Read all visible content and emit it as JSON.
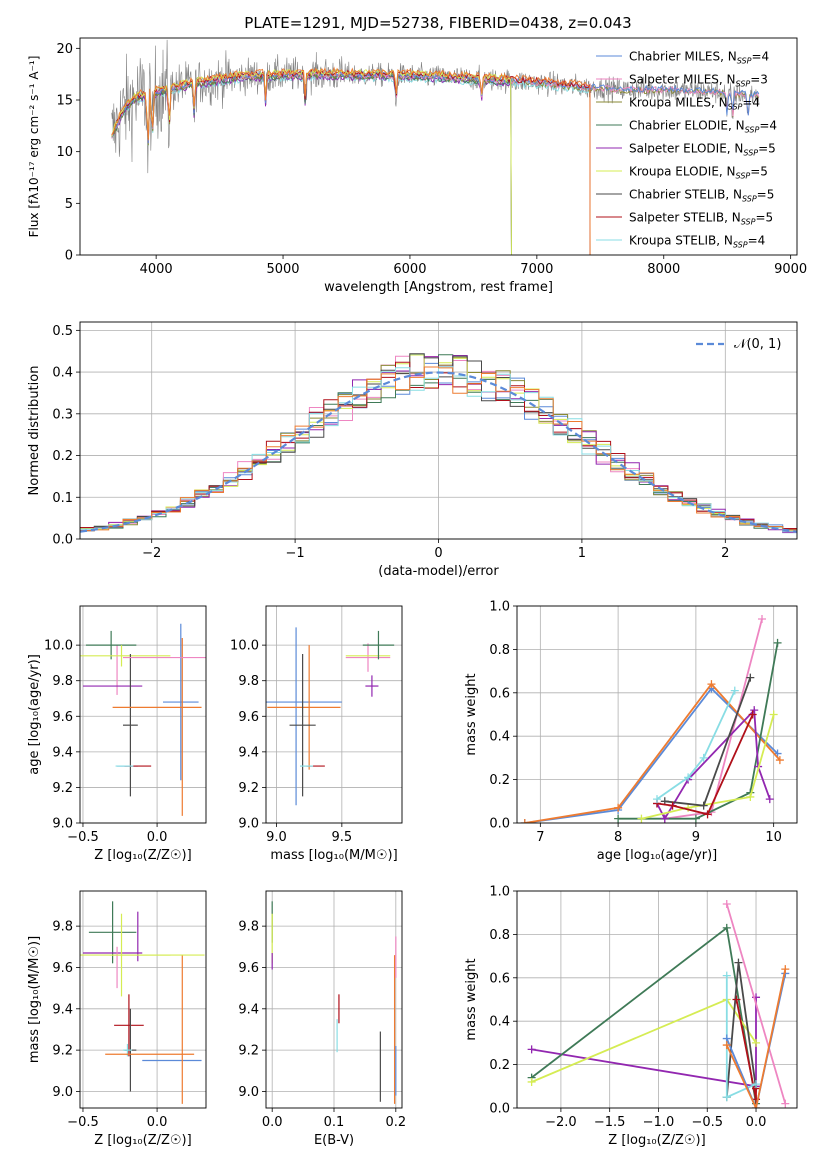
{
  "figure_title": "PLATE=1291, MJD=52738, FIBERID=0438, z=0.043",
  "colors": {
    "Chabrier MILES": "#5b8ad8",
    "Salpeter MILES": "#ee86c2",
    "Kroupa MILES": "#8a8a35",
    "Chabrier ELODIE": "#3f7a57",
    "Salpeter ELODIE": "#9227b0",
    "Kroupa ELODIE": "#d5ec53",
    "Chabrier STELIB": "#4a4a4a",
    "Salpeter STELIB": "#b0101a",
    "Kroupa STELIB": "#88dde4",
    "data_grey": "#808080",
    "orange": "#ee7b30"
  },
  "chart_data": [
    {
      "id": "spectrum",
      "type": "line",
      "title": "PLATE=1291, MJD=52738, FIBERID=0438, z=0.043",
      "xlabel": "wavelength [Angstrom, rest frame]",
      "ylabel": "Flux [fλ10⁻¹⁷ erg cm⁻² s⁻¹ A⁻¹]",
      "xlim": [
        3400,
        9050
      ],
      "ylim": [
        0,
        21
      ],
      "xticks": [
        4000,
        5000,
        6000,
        7000,
        8000,
        9000
      ],
      "yticks": [
        0,
        5,
        10,
        15,
        20
      ],
      "legend_position": "top-right",
      "legend": [
        "Chabrier MILES, N_SSP=4",
        "Salpeter MILES, N_SSP=3",
        "Kroupa MILES, N_SSP=4",
        "Chabrier ELODIE, N_SSP=4",
        "Salpeter ELODIE, N_SSP=5",
        "Kroupa ELODIE, N_SSP=5",
        "Chabrier STELIB, N_SSP=5",
        "Salpeter STELIB, N_SSP=5",
        "Kroupa STELIB, N_SSP=4"
      ],
      "continuum": {
        "x": [
          3650,
          3750,
          3850,
          3950,
          4100,
          4300,
          4500,
          4700,
          5000,
          5300,
          5600,
          5900,
          6300,
          6600,
          7000,
          7400,
          7700,
          8000,
          8400,
          8700
        ],
        "y": [
          11.5,
          14.2,
          15.3,
          15.6,
          16.1,
          16.6,
          17.0,
          17.3,
          17.4,
          17.5,
          17.4,
          17.4,
          17.2,
          17.0,
          16.7,
          16.2,
          16.0,
          16.0,
          15.8,
          15.5
        ]
      },
      "model_cutoffs": {
        "ELODIE": 6800,
        "STELIB": 7420
      }
    },
    {
      "id": "residual_hist",
      "type": "bar",
      "xlabel": "(data-model)/error",
      "ylabel": "Normed distribution",
      "xlim": [
        -2.5,
        2.5
      ],
      "ylim": [
        0,
        0.52
      ],
      "xticks": [
        -2,
        -1,
        0,
        1,
        2
      ],
      "yticks": [
        0.0,
        0.1,
        0.2,
        0.3,
        0.4,
        0.5
      ],
      "legend": [
        "𝒩(0, 1)"
      ],
      "legend_position": "top-right",
      "bin_width": 0.1,
      "reference_curve": "standard normal N(0,1)"
    },
    {
      "id": "age_vs_Z",
      "type": "scatter",
      "xlabel": "Z [log₁₀(Z/Z☉)]",
      "ylabel": "age  [log₁₀(age/yr)]",
      "xlim": [
        -0.52,
        0.33
      ],
      "ylim": [
        9.0,
        10.22
      ],
      "xticks": [
        -0.5,
        0.0
      ],
      "yticks": [
        9.0,
        9.2,
        9.4,
        9.6,
        9.8,
        10.0
      ],
      "errorbars": [
        {
          "model": "Chabrier MILES",
          "x": 0.16,
          "xerr": 0.12,
          "y": 9.68,
          "yerr": 0.44
        },
        {
          "model": "Salpeter MILES",
          "x": -0.27,
          "xerr": 0.0,
          "y": 9.86,
          "yerr": 0.14
        },
        {
          "model": "Chabrier MILES",
          "x": -0.2,
          "xerr": 0.07,
          "y": 9.32,
          "yerr": 0.0
        },
        {
          "model": "Chabrier ELODIE",
          "x": -0.31,
          "xerr": 0.17,
          "y": 10.0,
          "yerr": 0.08
        },
        {
          "model": "Salpeter ELODIE",
          "x": -0.3,
          "xerr": 0.2,
          "y": 9.77,
          "yerr": 0.0
        },
        {
          "model": "Kroupa ELODIE",
          "x": -0.24,
          "xerr": 0.33,
          "y": 9.94,
          "yerr": 0.06
        },
        {
          "model": "Chabrier STELIB",
          "x": -0.18,
          "xerr": 0.05,
          "y": 9.55,
          "yerr": 0.4
        },
        {
          "model": "Salpeter STELIB",
          "x": -0.13,
          "xerr": 0.09,
          "y": 9.32,
          "yerr": 0.0
        },
        {
          "model": "Kroupa STELIB",
          "x": -0.22,
          "xerr": 0.06,
          "y": 9.32,
          "yerr": 0.0
        },
        {
          "model": "orange",
          "x": 0.0,
          "xerr": 0.3,
          "y": 9.65,
          "yerr": 0.0
        },
        {
          "model": "orange",
          "x": 0.17,
          "xerr": 0.0,
          "y": 9.54,
          "yerr": 0.5
        },
        {
          "model": "Salpeter MILES",
          "x": 0.07,
          "xerr": 0.3,
          "y": 9.93,
          "yerr": 0.0
        }
      ]
    },
    {
      "id": "age_vs_mass",
      "type": "scatter",
      "xlabel": "mass [log₁₀(M/M☉)]",
      "ylabel": "",
      "xlim": [
        8.92,
        9.96
      ],
      "ylim": [
        9.0,
        10.22
      ],
      "xticks": [
        9.0,
        9.5
      ],
      "yticks": [
        9.0,
        9.2,
        9.4,
        9.6,
        9.8,
        10.0
      ],
      "errorbars": [
        {
          "model": "Chabrier MILES",
          "x": 9.15,
          "xerr": 0.0,
          "y": 9.6,
          "yerr": 0.5
        },
        {
          "model": "Chabrier MILES",
          "x": 9.2,
          "xerr": 0.3,
          "y": 9.68,
          "yerr": 0.0
        },
        {
          "model": "orange",
          "x": 9.21,
          "xerr": 0.28,
          "y": 9.65,
          "yerr": 0.0
        },
        {
          "model": "orange",
          "x": 9.25,
          "xerr": 0.0,
          "y": 9.65,
          "yerr": 0.35
        },
        {
          "model": "Chabrier STELIB",
          "x": 9.2,
          "xerr": 0.1,
          "y": 9.55,
          "yerr": 0.4
        },
        {
          "model": "Salpeter STELIB",
          "x": 9.3,
          "xerr": 0.07,
          "y": 9.32,
          "yerr": 0.0
        },
        {
          "model": "Kroupa STELIB",
          "x": 9.23,
          "xerr": 0.05,
          "y": 9.32,
          "yerr": 0.0
        },
        {
          "model": "Salpeter MILES",
          "x": 9.7,
          "xerr": 0.17,
          "y": 9.93,
          "yerr": 0.08
        },
        {
          "model": "Kroupa ELODIE",
          "x": 9.7,
          "xerr": 0.17,
          "y": 9.94,
          "yerr": 0.0
        },
        {
          "model": "Chabrier ELODIE",
          "x": 9.78,
          "xerr": 0.12,
          "y": 10.0,
          "yerr": 0.08
        },
        {
          "model": "Salpeter ELODIE",
          "x": 9.73,
          "xerr": 0.05,
          "y": 9.77,
          "yerr": 0.06
        }
      ]
    },
    {
      "id": "massweight_vs_age",
      "type": "line",
      "xlabel": "age  [log₁₀(age/yr)]",
      "ylabel": "mass weight",
      "xlim": [
        6.7,
        10.3
      ],
      "ylim": [
        0,
        1.0
      ],
      "xticks": [
        7,
        8,
        9,
        10
      ],
      "yticks": [
        0.0,
        0.2,
        0.4,
        0.6,
        0.8,
        1.0
      ],
      "series": [
        {
          "model": "Chabrier MILES",
          "x": [
            6.8,
            8.0,
            9.2,
            10.05
          ],
          "y": [
            0.0,
            0.06,
            0.62,
            0.32
          ]
        },
        {
          "model": "orange",
          "x": [
            6.8,
            8.0,
            9.2,
            10.08
          ],
          "y": [
            0.0,
            0.07,
            0.64,
            0.29
          ]
        },
        {
          "model": "Salpeter MILES",
          "x": [
            8.6,
            9.2,
            9.85
          ],
          "y": [
            0.02,
            0.05,
            0.94
          ]
        },
        {
          "model": "Chabrier ELODIE",
          "x": [
            8.0,
            9.0,
            9.7,
            10.05
          ],
          "y": [
            0.02,
            0.02,
            0.14,
            0.83
          ]
        },
        {
          "model": "Salpeter ELODIE",
          "x": [
            8.5,
            8.6,
            8.9,
            9.75,
            9.8,
            9.95
          ],
          "y": [
            0.09,
            0.02,
            0.2,
            0.52,
            0.26,
            0.11
          ]
        },
        {
          "model": "Kroupa ELODIE",
          "x": [
            8.3,
            8.9,
            9.7,
            10.0
          ],
          "y": [
            0.02,
            0.07,
            0.12,
            0.5
          ]
        },
        {
          "model": "Chabrier STELIB",
          "x": [
            8.6,
            9.1,
            9.7
          ],
          "y": [
            0.1,
            0.08,
            0.67
          ]
        },
        {
          "model": "Salpeter STELIB",
          "x": [
            8.5,
            8.7,
            9.15,
            9.73
          ],
          "y": [
            0.09,
            0.08,
            0.04,
            0.5
          ]
        },
        {
          "model": "Kroupa STELIB",
          "x": [
            8.5,
            8.9,
            9.1,
            9.5
          ],
          "y": [
            0.11,
            0.21,
            0.3,
            0.61
          ]
        }
      ]
    },
    {
      "id": "mass_vs_Z",
      "type": "scatter",
      "xlabel": "Z [log₁₀(Z/Z☉)]",
      "ylabel": "mass [log₁₀(M/M☉)]",
      "xlim": [
        -0.52,
        0.33
      ],
      "ylim": [
        8.92,
        9.97
      ],
      "xticks": [
        -0.5,
        0.0
      ],
      "yticks": [
        9.0,
        9.2,
        9.4,
        9.6,
        9.8
      ],
      "errorbars": [
        {
          "model": "Chabrier ELODIE",
          "x": -0.3,
          "xerr": 0.16,
          "y": 9.77,
          "yerr": 0.15
        },
        {
          "model": "Salpeter ELODIE",
          "x": -0.3,
          "xerr": 0.2,
          "y": 9.67,
          "yerr": 0.0
        },
        {
          "model": "Kroupa ELODIE",
          "x": -0.24,
          "xerr": 0.33,
          "y": 9.66,
          "yerr": 0.2
        },
        {
          "model": "Salpeter MILES",
          "x": -0.27,
          "xerr": 0.0,
          "y": 9.6,
          "yerr": 0.1
        },
        {
          "model": "Salpeter ELODIE",
          "x": -0.13,
          "xerr": 0.0,
          "y": 9.75,
          "yerr": 0.12
        },
        {
          "model": "Salpeter STELIB",
          "x": -0.19,
          "xerr": 0.1,
          "y": 9.32,
          "yerr": 0.15
        },
        {
          "model": "Chabrier STELIB",
          "x": -0.18,
          "xerr": 0.04,
          "y": 9.2,
          "yerr": 0.2
        },
        {
          "model": "Kroupa STELIB",
          "x": -0.2,
          "xerr": 0.03,
          "y": 9.2,
          "yerr": 0.03
        },
        {
          "model": "orange",
          "x": -0.05,
          "xerr": 0.3,
          "y": 9.18,
          "yerr": 0.0
        },
        {
          "model": "Chabrier MILES",
          "x": 0.1,
          "xerr": 0.2,
          "y": 9.15,
          "yerr": 0.0
        },
        {
          "model": "orange",
          "x": 0.17,
          "xerr": 0.0,
          "y": 9.3,
          "yerr": 0.36
        },
        {
          "model": "Kroupa ELODIE",
          "x": 0.0,
          "xerr": 0.32,
          "y": 9.66,
          "yerr": 0.0
        }
      ]
    },
    {
      "id": "mass_vs_EBV",
      "type": "scatter",
      "xlabel": "E(B-V)",
      "ylabel": "",
      "xlim": [
        -0.01,
        0.21
      ],
      "ylim": [
        8.92,
        9.97
      ],
      "xticks": [
        0.0,
        0.1,
        0.2
      ],
      "yticks": [
        9.0,
        9.2,
        9.4,
        9.6,
        9.8
      ],
      "errorbars": [
        {
          "model": "Chabrier ELODIE",
          "x": 0.0,
          "xerr": 0.0,
          "y": 9.82,
          "yerr": 0.1
        },
        {
          "model": "Kroupa ELODIE",
          "x": 0.0,
          "xerr": 0.0,
          "y": 9.74,
          "yerr": 0.12
        },
        {
          "model": "Salpeter ELODIE",
          "x": 0.0,
          "xerr": 0.0,
          "y": 9.63,
          "yerr": 0.04
        },
        {
          "model": "Salpeter STELIB",
          "x": 0.108,
          "xerr": 0.0,
          "y": 9.4,
          "yerr": 0.07
        },
        {
          "model": "Kroupa STELIB",
          "x": 0.105,
          "xerr": 0.0,
          "y": 9.27,
          "yerr": 0.08
        },
        {
          "model": "Chabrier STELIB",
          "x": 0.175,
          "xerr": 0.0,
          "y": 9.12,
          "yerr": 0.17
        },
        {
          "model": "orange",
          "x": 0.198,
          "xerr": 0.0,
          "y": 9.3,
          "yerr": 0.36
        },
        {
          "model": "Salpeter MILES",
          "x": 0.2,
          "xerr": 0.0,
          "y": 9.65,
          "yerr": 0.1
        },
        {
          "model": "Chabrier MILES",
          "x": 0.2,
          "xerr": 0.0,
          "y": 9.1,
          "yerr": 0.12
        }
      ]
    },
    {
      "id": "massweight_vs_Z",
      "type": "line",
      "xlabel": "Z [log₁₀(Z/Z☉)]",
      "ylabel": "mass weight",
      "xlim": [
        -2.45,
        0.42
      ],
      "ylim": [
        0,
        1.0
      ],
      "xticks": [
        -2.0,
        -1.5,
        -1.0,
        -0.5,
        0.0
      ],
      "yticks": [
        0.0,
        0.2,
        0.4,
        0.6,
        0.8,
        1.0
      ],
      "series": [
        {
          "model": "Salpeter ELODIE",
          "x": [
            -2.3,
            0.0,
            0.0
          ],
          "y": [
            0.27,
            0.1,
            0.51
          ]
        },
        {
          "model": "Chabrier ELODIE",
          "x": [
            -2.3,
            -0.3,
            0.0
          ],
          "y": [
            0.14,
            0.83,
            0.02
          ]
        },
        {
          "model": "Kroupa ELODIE",
          "x": [
            -2.3,
            -0.3,
            0.0
          ],
          "y": [
            0.12,
            0.5,
            0.3
          ]
        },
        {
          "model": "Salpeter MILES",
          "x": [
            -0.3,
            0.3
          ],
          "y": [
            0.94,
            0.02
          ]
        },
        {
          "model": "Chabrier STELIB",
          "x": [
            -0.3,
            -0.18,
            0.0
          ],
          "y": [
            0.05,
            0.67,
            0.09
          ]
        },
        {
          "model": "Salpeter STELIB",
          "x": [
            -0.2,
            0.0,
            0.0
          ],
          "y": [
            0.5,
            0.04,
            0.09
          ]
        },
        {
          "model": "Kroupa STELIB",
          "x": [
            -0.3,
            -0.3,
            0.0
          ],
          "y": [
            0.61,
            0.05,
            0.11
          ]
        },
        {
          "model": "Chabrier MILES",
          "x": [
            -0.3,
            0.0,
            0.3
          ],
          "y": [
            0.32,
            0.0,
            0.62
          ]
        },
        {
          "model": "orange",
          "x": [
            -0.3,
            0.0,
            0.3
          ],
          "y": [
            0.29,
            0.0,
            0.64
          ]
        }
      ]
    }
  ]
}
